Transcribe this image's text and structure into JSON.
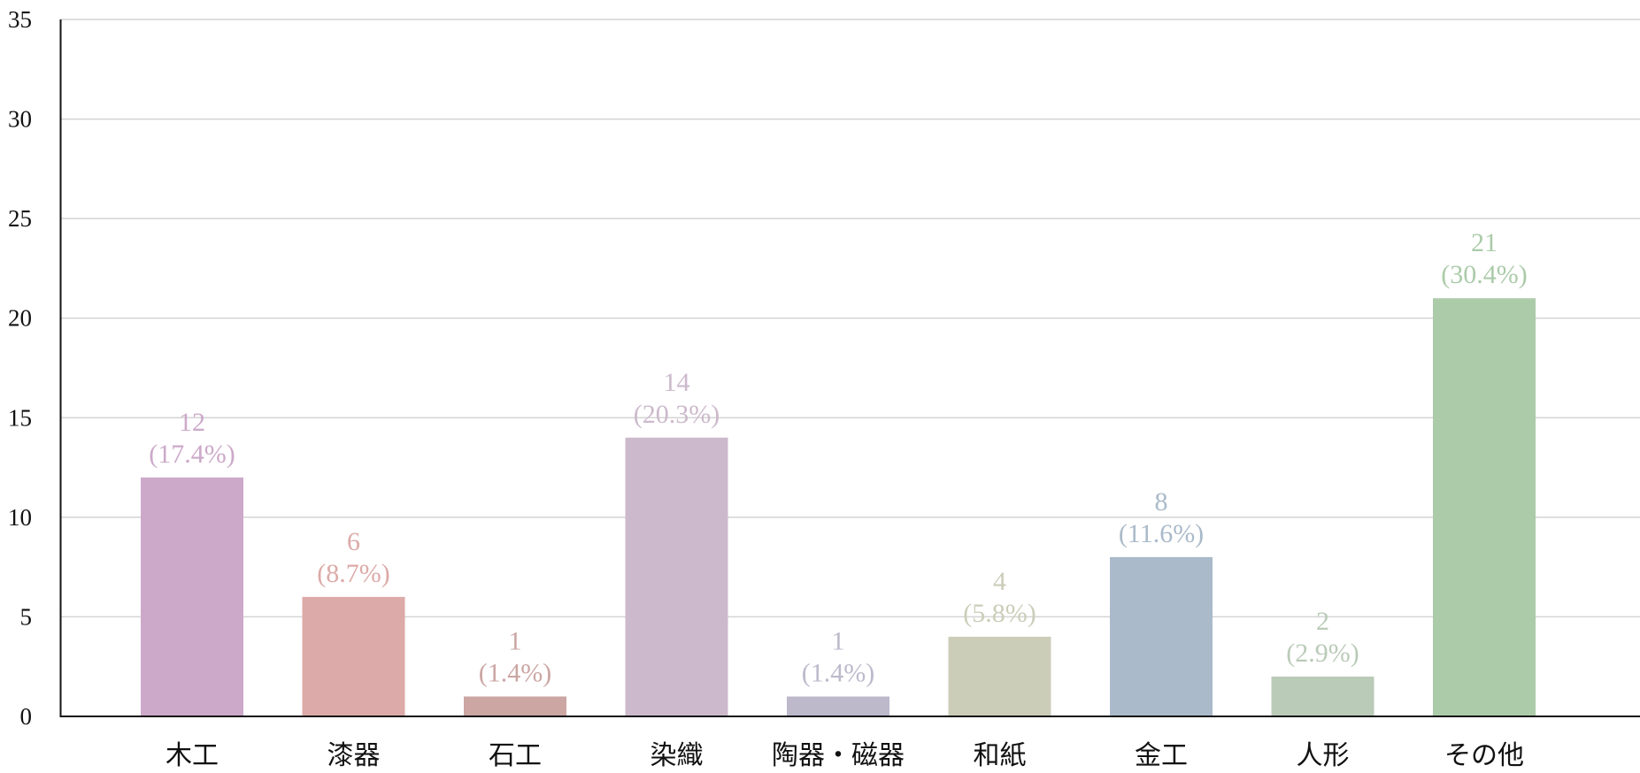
{
  "chart_data": {
    "type": "bar",
    "title": "",
    "xlabel": "",
    "ylabel": "",
    "categories": [
      "木工",
      "漆器",
      "石工",
      "染織",
      "陶器・磁器",
      "和紙",
      "金工",
      "人形",
      "その他"
    ],
    "values": [
      12,
      6,
      1,
      14,
      1,
      4,
      8,
      2,
      21
    ],
    "data_labels": [
      "12",
      "6",
      "1",
      "14",
      "1",
      "4",
      "8",
      "2",
      "21"
    ],
    "percent_labels": [
      "(17.4%)",
      "(8.7%)",
      "(1.4%)",
      "(20.3%)",
      "(1.4%)",
      "(5.8%)",
      "(11.6%)",
      "(2.9%)",
      "(30.4%)"
    ],
    "colors": [
      "#cca9c9",
      "#dcaaa8",
      "#cba6a3",
      "#ccbacc",
      "#bdb9cb",
      "#cccdb9",
      "#aabaca",
      "#bacbb8",
      "#abcba9"
    ],
    "ylim": [
      0,
      35
    ],
    "yticks": [
      "0",
      "5",
      "10",
      "15",
      "20",
      "25",
      "30",
      "35"
    ],
    "grid": true,
    "legend": "none"
  }
}
